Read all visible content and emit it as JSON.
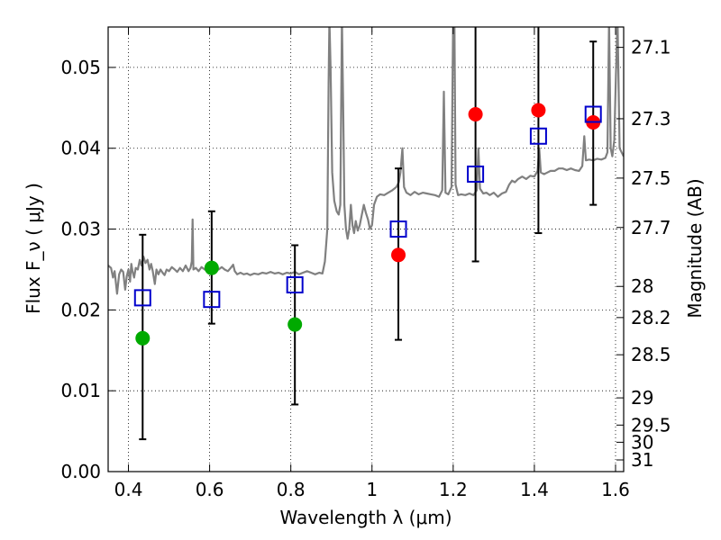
{
  "chart_data": {
    "type": "scatter",
    "xlabel": "Wavelength  λ (μm)",
    "ylabel": "Flux  F_ν  ( μJy )",
    "y2label": "Magnitude (AB)",
    "xlim": [
      0.35,
      1.62
    ],
    "ylim": [
      0.0,
      0.055
    ],
    "grid": true,
    "x_ticks": [
      {
        "value": 0.4,
        "label": "0.4"
      },
      {
        "value": 0.6,
        "label": "0.6"
      },
      {
        "value": 0.8,
        "label": "0.8"
      },
      {
        "value": 1.0,
        "label": "1"
      },
      {
        "value": 1.2,
        "label": "1.2"
      },
      {
        "value": 1.4,
        "label": "1.4"
      },
      {
        "value": 1.6,
        "label": "1.6"
      }
    ],
    "y_ticks": [
      {
        "value": 0.0,
        "label": "0.00"
      },
      {
        "value": 0.01,
        "label": "0.01"
      },
      {
        "value": 0.02,
        "label": "0.02"
      },
      {
        "value": 0.03,
        "label": "0.03"
      },
      {
        "value": 0.04,
        "label": "0.04"
      },
      {
        "value": 0.05,
        "label": "0.05"
      }
    ],
    "y2_ticks": [
      {
        "value": 27.1,
        "label": "27.1"
      },
      {
        "value": 27.3,
        "label": "27.3"
      },
      {
        "value": 27.5,
        "label": "27.5"
      },
      {
        "value": 27.7,
        "label": "27.7"
      },
      {
        "value": 28.0,
        "label": "28"
      },
      {
        "value": 28.2,
        "label": "28.2"
      },
      {
        "value": 28.5,
        "label": "28.5"
      },
      {
        "value": 29.0,
        "label": "29"
      },
      {
        "value": 29.5,
        "label": "29.5"
      },
      {
        "value": 30.0,
        "label": "30"
      },
      {
        "value": 31.0,
        "label": "31"
      }
    ],
    "series": [
      {
        "kind": "template_spectrum",
        "color": "#808080",
        "points": [
          [
            0.35,
            0.0255
          ],
          [
            0.357,
            0.0252
          ],
          [
            0.362,
            0.024
          ],
          [
            0.366,
            0.0248
          ],
          [
            0.372,
            0.022
          ],
          [
            0.377,
            0.0244
          ],
          [
            0.382,
            0.025
          ],
          [
            0.387,
            0.0247
          ],
          [
            0.392,
            0.0225
          ],
          [
            0.396,
            0.0242
          ],
          [
            0.4,
            0.025
          ],
          [
            0.404,
            0.0235
          ],
          [
            0.407,
            0.0257
          ],
          [
            0.41,
            0.0248
          ],
          [
            0.414,
            0.024
          ],
          [
            0.418,
            0.0252
          ],
          [
            0.423,
            0.025
          ],
          [
            0.428,
            0.0262
          ],
          [
            0.432,
            0.0255
          ],
          [
            0.437,
            0.0266
          ],
          [
            0.442,
            0.0258
          ],
          [
            0.447,
            0.0262
          ],
          [
            0.452,
            0.025
          ],
          [
            0.456,
            0.0257
          ],
          [
            0.46,
            0.0248
          ],
          [
            0.465,
            0.0232
          ],
          [
            0.469,
            0.025
          ],
          [
            0.474,
            0.0244
          ],
          [
            0.479,
            0.025
          ],
          [
            0.484,
            0.0246
          ],
          [
            0.489,
            0.0243
          ],
          [
            0.494,
            0.025
          ],
          [
            0.5,
            0.0248
          ],
          [
            0.507,
            0.0253
          ],
          [
            0.514,
            0.025
          ],
          [
            0.52,
            0.0247
          ],
          [
            0.527,
            0.0252
          ],
          [
            0.534,
            0.0248
          ],
          [
            0.541,
            0.0255
          ],
          [
            0.548,
            0.0248
          ],
          [
            0.553,
            0.0252
          ],
          [
            0.556,
            0.026
          ],
          [
            0.558,
            0.0312
          ],
          [
            0.56,
            0.025
          ],
          [
            0.566,
            0.0252
          ],
          [
            0.573,
            0.0248
          ],
          [
            0.58,
            0.0253
          ],
          [
            0.588,
            0.025
          ],
          [
            0.596,
            0.0258
          ],
          [
            0.602,
            0.0252
          ],
          [
            0.608,
            0.025
          ],
          [
            0.615,
            0.0255
          ],
          [
            0.622,
            0.025
          ],
          [
            0.63,
            0.0253
          ],
          [
            0.637,
            0.025
          ],
          [
            0.645,
            0.0248
          ],
          [
            0.652,
            0.0252
          ],
          [
            0.658,
            0.0256
          ],
          [
            0.662,
            0.0248
          ],
          [
            0.668,
            0.0244
          ],
          [
            0.676,
            0.0246
          ],
          [
            0.684,
            0.0244
          ],
          [
            0.692,
            0.0245
          ],
          [
            0.7,
            0.0243
          ],
          [
            0.71,
            0.0245
          ],
          [
            0.72,
            0.0244
          ],
          [
            0.73,
            0.0246
          ],
          [
            0.74,
            0.0245
          ],
          [
            0.75,
            0.0247
          ],
          [
            0.76,
            0.0245
          ],
          [
            0.77,
            0.0246
          ],
          [
            0.78,
            0.0244
          ],
          [
            0.79,
            0.0246
          ],
          [
            0.8,
            0.0245
          ],
          [
            0.81,
            0.0247
          ],
          [
            0.82,
            0.0244
          ],
          [
            0.83,
            0.0246
          ],
          [
            0.84,
            0.0248
          ],
          [
            0.85,
            0.0246
          ],
          [
            0.86,
            0.0244
          ],
          [
            0.87,
            0.0246
          ],
          [
            0.878,
            0.0245
          ],
          [
            0.884,
            0.026
          ],
          [
            0.89,
            0.03
          ],
          [
            0.893,
            0.048
          ],
          [
            0.895,
            0.056
          ],
          [
            0.898,
            0.05
          ],
          [
            0.902,
            0.037
          ],
          [
            0.907,
            0.0335
          ],
          [
            0.913,
            0.0322
          ],
          [
            0.918,
            0.0318
          ],
          [
            0.922,
            0.033
          ],
          [
            0.926,
            0.056
          ],
          [
            0.929,
            0.045
          ],
          [
            0.932,
            0.033
          ],
          [
            0.936,
            0.03
          ],
          [
            0.94,
            0.0288
          ],
          [
            0.944,
            0.03
          ],
          [
            0.948,
            0.033
          ],
          [
            0.952,
            0.0305
          ],
          [
            0.956,
            0.0295
          ],
          [
            0.96,
            0.031
          ],
          [
            0.965,
            0.0298
          ],
          [
            0.97,
            0.0305
          ],
          [
            0.975,
            0.0318
          ],
          [
            0.98,
            0.033
          ],
          [
            0.985,
            0.032
          ],
          [
            0.99,
            0.0312
          ],
          [
            0.995,
            0.03
          ],
          [
            1.0,
            0.0305
          ],
          [
            1.005,
            0.033
          ],
          [
            1.012,
            0.034
          ],
          [
            1.02,
            0.0343
          ],
          [
            1.03,
            0.0342
          ],
          [
            1.04,
            0.0345
          ],
          [
            1.05,
            0.0348
          ],
          [
            1.06,
            0.0352
          ],
          [
            1.066,
            0.0358
          ],
          [
            1.07,
            0.037
          ],
          [
            1.075,
            0.04
          ],
          [
            1.079,
            0.0352
          ],
          [
            1.085,
            0.0345
          ],
          [
            1.095,
            0.0342
          ],
          [
            1.105,
            0.0346
          ],
          [
            1.115,
            0.0343
          ],
          [
            1.125,
            0.0345
          ],
          [
            1.135,
            0.0344
          ],
          [
            1.145,
            0.0343
          ],
          [
            1.155,
            0.0342
          ],
          [
            1.165,
            0.034
          ],
          [
            1.173,
            0.0348
          ],
          [
            1.177,
            0.047
          ],
          [
            1.181,
            0.0345
          ],
          [
            1.188,
            0.0343
          ],
          [
            1.196,
            0.0352
          ],
          [
            1.2,
            0.056
          ],
          [
            1.203,
            0.056
          ],
          [
            1.206,
            0.0355
          ],
          [
            1.212,
            0.0342
          ],
          [
            1.22,
            0.0343
          ],
          [
            1.23,
            0.0342
          ],
          [
            1.24,
            0.0344
          ],
          [
            1.25,
            0.0342
          ],
          [
            1.258,
            0.0348
          ],
          [
            1.262,
            0.04
          ],
          [
            1.266,
            0.035
          ],
          [
            1.274,
            0.0344
          ],
          [
            1.282,
            0.0345
          ],
          [
            1.29,
            0.0342
          ],
          [
            1.3,
            0.0345
          ],
          [
            1.31,
            0.034
          ],
          [
            1.32,
            0.0344
          ],
          [
            1.33,
            0.0346
          ],
          [
            1.338,
            0.0355
          ],
          [
            1.345,
            0.036
          ],
          [
            1.352,
            0.0358
          ],
          [
            1.36,
            0.0362
          ],
          [
            1.37,
            0.0365
          ],
          [
            1.38,
            0.0362
          ],
          [
            1.39,
            0.0366
          ],
          [
            1.4,
            0.0365
          ],
          [
            1.408,
            0.0372
          ],
          [
            1.412,
            0.04
          ],
          [
            1.416,
            0.037
          ],
          [
            1.424,
            0.0368
          ],
          [
            1.432,
            0.037
          ],
          [
            1.44,
            0.0372
          ],
          [
            1.45,
            0.0372
          ],
          [
            1.46,
            0.0375
          ],
          [
            1.47,
            0.0375
          ],
          [
            1.48,
            0.0373
          ],
          [
            1.49,
            0.0375
          ],
          [
            1.5,
            0.0373
          ],
          [
            1.51,
            0.0372
          ],
          [
            1.518,
            0.0378
          ],
          [
            1.523,
            0.0415
          ],
          [
            1.527,
            0.0385
          ],
          [
            1.535,
            0.0386
          ],
          [
            1.545,
            0.0385
          ],
          [
            1.555,
            0.0387
          ],
          [
            1.565,
            0.0386
          ],
          [
            1.575,
            0.0388
          ],
          [
            1.58,
            0.0395
          ],
          [
            1.584,
            0.056
          ],
          [
            1.588,
            0.04
          ],
          [
            1.592,
            0.039
          ],
          [
            1.597,
            0.041
          ],
          [
            1.601,
            0.049
          ],
          [
            1.605,
            0.056
          ],
          [
            1.61,
            0.04
          ],
          [
            1.615,
            0.0395
          ],
          [
            1.62,
            0.039
          ]
        ]
      },
      {
        "kind": "model_fluxes",
        "marker": "open-square",
        "color": "#0000cc",
        "x": [
          0.435,
          0.605,
          0.81,
          1.065,
          1.255,
          1.41,
          1.545
        ],
        "y": [
          0.0215,
          0.0213,
          0.0231,
          0.03,
          0.0368,
          0.0415,
          0.0442
        ]
      },
      {
        "kind": "detections_optical",
        "marker": "filled-circle",
        "color": "#00aa00",
        "x": [
          0.435,
          0.605,
          0.81
        ],
        "y": [
          0.0165,
          0.0252,
          0.0182
        ]
      },
      {
        "kind": "detections_nir",
        "marker": "filled-circle",
        "color": "#ff0000",
        "x": [
          1.065,
          1.255,
          1.41,
          1.545
        ],
        "y": [
          0.0268,
          0.0442,
          0.0447,
          0.0432
        ]
      },
      {
        "kind": "error_bars",
        "color": "#000000",
        "x": [
          0.435,
          0.605,
          0.81,
          1.065,
          1.255,
          1.41,
          1.545
        ],
        "low": [
          0.004,
          0.0183,
          0.0083,
          0.0163,
          0.026,
          0.0295,
          0.033
        ],
        "high": [
          0.0293,
          0.0322,
          0.028,
          0.0375,
          0.056,
          0.056,
          0.0532
        ]
      }
    ]
  }
}
